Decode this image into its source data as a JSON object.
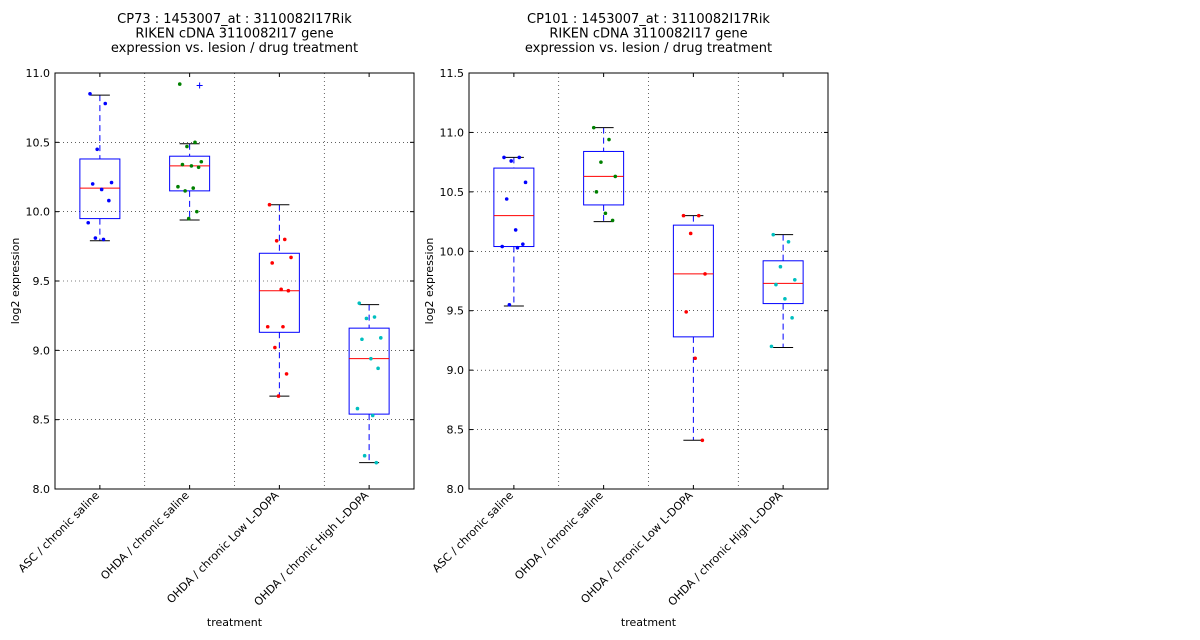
{
  "chart_data": [
    {
      "type": "box",
      "title": [
        "CP73 : 1453007_at : 3110082I17Rik",
        "RIKEN cDNA 3110082I17 gene",
        "expression vs. lesion / drug treatment"
      ],
      "xlabel": "treatment",
      "ylabel": "log2 expression",
      "ylim": [
        8.0,
        11.0
      ],
      "yticks": [
        "8.0",
        "8.5",
        "9.0",
        "9.5",
        "10.0",
        "10.5",
        "11.0"
      ],
      "grid": true,
      "categories": [
        "ASC / chronic saline",
        "OHDA / chronic saline",
        "OHDA / chronic Low L-DOPA",
        "OHDA / chronic High L-DOPA"
      ],
      "point_colors": [
        "#0000ff",
        "#008000",
        "#ff0000",
        "#00bfbf"
      ],
      "box_color": "#0000ff",
      "median_color": "#ff0000",
      "boxes": [
        {
          "whisker_low": 9.79,
          "q1": 9.95,
          "median": 10.17,
          "q3": 10.38,
          "whisker_high": 10.84,
          "outliers": []
        },
        {
          "whisker_low": 9.94,
          "q1": 10.15,
          "median": 10.33,
          "q3": 10.4,
          "whisker_high": 10.49,
          "outliers": [
            10.91
          ]
        },
        {
          "whisker_low": 8.67,
          "q1": 9.13,
          "median": 9.43,
          "q3": 9.7,
          "whisker_high": 10.05,
          "outliers": []
        },
        {
          "whisker_low": 8.19,
          "q1": 8.54,
          "median": 8.94,
          "q3": 9.16,
          "whisker_high": 9.33,
          "outliers": []
        }
      ],
      "points": [
        [
          10.85,
          10.78,
          10.45,
          10.21,
          10.2,
          10.16,
          10.08,
          9.92,
          9.8,
          9.81
        ],
        [
          10.92,
          10.5,
          10.47,
          10.36,
          10.34,
          10.33,
          10.32,
          10.18,
          10.17,
          10.15,
          10.0,
          9.95
        ],
        [
          10.05,
          9.8,
          9.79,
          9.67,
          9.63,
          9.44,
          9.43,
          9.17,
          9.17,
          9.02,
          8.83,
          8.67
        ],
        [
          9.34,
          9.24,
          9.23,
          9.09,
          9.08,
          8.94,
          8.87,
          8.58,
          8.53,
          8.24,
          8.19
        ]
      ]
    },
    {
      "type": "box",
      "title": [
        "CP101 : 1453007_at : 3110082I17Rik",
        "RIKEN cDNA 3110082I17 gene",
        "expression vs. lesion / drug treatment"
      ],
      "xlabel": "treatment",
      "ylabel": "log2 expression",
      "ylim": [
        8.0,
        11.5
      ],
      "yticks": [
        "8.0",
        "8.5",
        "9.0",
        "9.5",
        "10.0",
        "10.5",
        "11.0",
        "11.5"
      ],
      "grid": true,
      "categories": [
        "ASC / chronic saline",
        "OHDA / chronic saline",
        "OHDA / chronic Low L-DOPA",
        "OHDA / chronic High L-DOPA"
      ],
      "point_colors": [
        "#0000ff",
        "#008000",
        "#ff0000",
        "#00bfbf"
      ],
      "box_color": "#0000ff",
      "median_color": "#ff0000",
      "boxes": [
        {
          "whisker_low": 9.54,
          "q1": 10.04,
          "median": 10.3,
          "q3": 10.7,
          "whisker_high": 10.79,
          "outliers": []
        },
        {
          "whisker_low": 10.25,
          "q1": 10.39,
          "median": 10.63,
          "q3": 10.84,
          "whisker_high": 11.04,
          "outliers": []
        },
        {
          "whisker_low": 8.41,
          "q1": 9.28,
          "median": 9.81,
          "q3": 10.22,
          "whisker_high": 10.3,
          "outliers": []
        },
        {
          "whisker_low": 9.19,
          "q1": 9.56,
          "median": 9.73,
          "q3": 9.92,
          "whisker_high": 10.14,
          "outliers": []
        }
      ],
      "points": [
        [
          10.79,
          10.79,
          10.76,
          10.58,
          10.44,
          10.18,
          10.06,
          10.04,
          10.03,
          9.55
        ],
        [
          11.04,
          10.94,
          10.75,
          10.63,
          10.5,
          10.32,
          10.26
        ],
        [
          10.3,
          10.3,
          10.15,
          9.81,
          9.49,
          9.1,
          8.41
        ],
        [
          10.14,
          10.08,
          9.87,
          9.76,
          9.72,
          9.6,
          9.44,
          9.2
        ]
      ]
    }
  ]
}
